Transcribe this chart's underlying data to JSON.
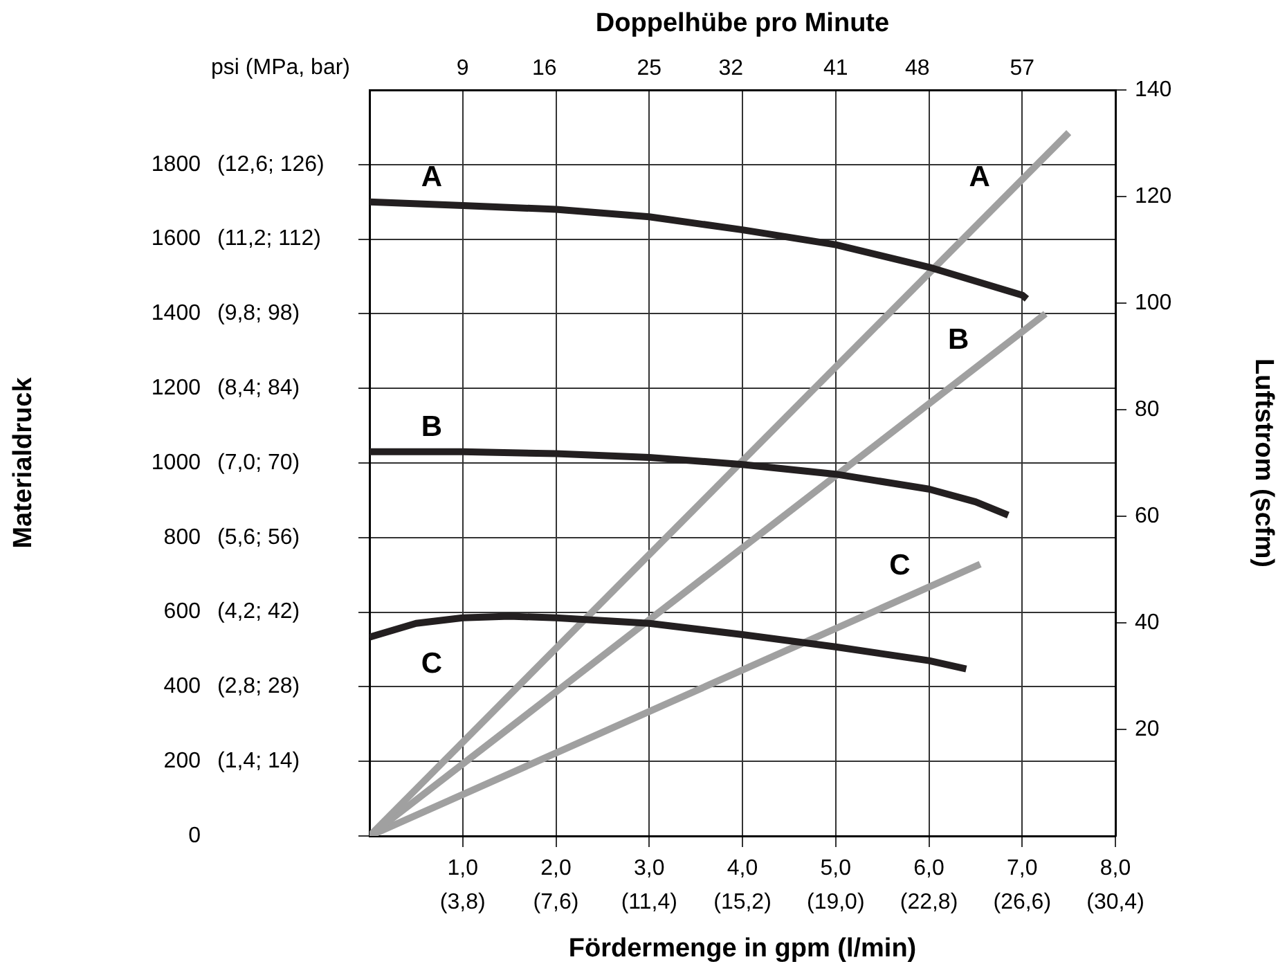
{
  "chart_data": {
    "type": "line",
    "x2label": "Doppelhübe pro Minute",
    "xlabel": "Fördermenge in gpm (l/min)",
    "ylabel": "Materialdruck",
    "y2label": "Luftstrom (scfm)",
    "xlim": [
      0,
      8
    ],
    "xticks": [
      {
        "value": 1,
        "label": "1,0"
      },
      {
        "value": 2,
        "label": "2,0"
      },
      {
        "value": 3,
        "label": "3,0"
      },
      {
        "value": 4,
        "label": "4,0"
      },
      {
        "value": 5,
        "label": "5,0"
      },
      {
        "value": 6,
        "label": "6,0"
      },
      {
        "value": 7,
        "label": "7,0"
      },
      {
        "value": 8,
        "label": "8,0"
      }
    ],
    "x2lim": [
      1,
      65
    ],
    "x2ticks": [
      9,
      16,
      25,
      32,
      41,
      48,
      57
    ],
    "ylim": [
      0,
      2000
    ],
    "yticks": [
      0,
      200,
      400,
      600,
      800,
      1000,
      1200,
      1400,
      1600,
      1800
    ],
    "y2lim": [
      0,
      140
    ],
    "y2ticks": [
      20,
      40,
      60,
      80,
      100,
      120,
      140
    ],
    "grid": true,
    "legend": false,
    "marker": "none",
    "line_style": "solid",
    "annotations": [
      "psi (MPa, bar)",
      "(3,8)",
      "(7,6)",
      "(11,4)",
      "(15,2)",
      "(19,0)",
      "(22,8)",
      "(26,6)",
      "(30,4)",
      "(1,4; 14)",
      "(2,8; 28)",
      "(4,2; 42)",
      "(5,6; 56)",
      "(7,0; 70)",
      "(8,4; 84)",
      "(9,8; 98)",
      "(11,2; 112)",
      "(12,6; 126)"
    ],
    "series": [
      {
        "name": "A",
        "color": "#231f20",
        "x": [
          0,
          1,
          2,
          3,
          4,
          5,
          6,
          7,
          7.05
        ],
        "values": [
          1700,
          1690,
          1680,
          1660,
          1625,
          1585,
          1525,
          1450,
          1440
        ]
      },
      {
        "name": "B",
        "color": "#231f20",
        "x": [
          0,
          1,
          2,
          3,
          4,
          5,
          6,
          6.5,
          6.85
        ],
        "values": [
          1030,
          1030,
          1025,
          1015,
          996,
          970,
          930,
          896,
          860
        ]
      },
      {
        "name": "C",
        "color": "#231f20",
        "x": [
          0,
          0.5,
          1,
          1.5,
          2,
          3,
          4,
          5,
          6,
          6.4
        ],
        "values": [
          533,
          570,
          585,
          589,
          585,
          570,
          540,
          507,
          470,
          448
        ]
      },
      {
        "name": "A",
        "color": "#a0a0a0",
        "axis": "y2",
        "x": [
          0,
          7.5
        ],
        "values": [
          0,
          132
        ]
      },
      {
        "name": "B",
        "color": "#a0a0a0",
        "axis": "y2",
        "x": [
          0,
          7.25
        ],
        "values": [
          0,
          98
        ]
      },
      {
        "name": "C",
        "color": "#a0a0a0",
        "axis": "y2",
        "x": [
          0,
          6.55
        ],
        "values": [
          0,
          51
        ]
      }
    ]
  }
}
